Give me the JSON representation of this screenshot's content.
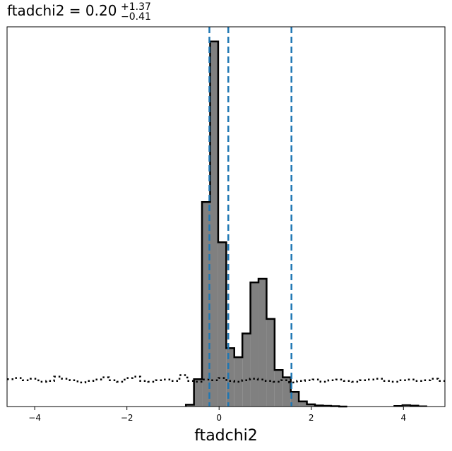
{
  "chart_data": {
    "type": "histogram",
    "title": {
      "main": "ftadchi2 = 0.20",
      "sup": "+1.37",
      "sub": "−0.41"
    },
    "xlabel": "ftadchi2",
    "ylabel": "",
    "xlim": [
      -4.6,
      4.9
    ],
    "ylim": [
      0,
      1.04
    ],
    "x_ticks": [
      -4,
      -2,
      0,
      2,
      4
    ],
    "x_tick_labels": [
      "−4",
      "−2",
      "0",
      "2",
      "4"
    ],
    "y_ticks_visible": false,
    "grid": false,
    "posterior_histogram": {
      "bin_width": 0.175,
      "bins_start": [
        -0.72,
        -0.545,
        -0.37,
        -0.195,
        -0.02,
        0.155,
        0.33,
        0.505,
        0.68,
        0.855,
        1.03,
        1.205,
        1.38,
        1.555,
        1.73,
        1.905,
        2.08,
        2.255,
        2.43,
        2.605
      ],
      "values": [
        0.005,
        0.075,
        0.56,
        1.0,
        0.45,
        0.16,
        0.135,
        0.2,
        0.34,
        0.35,
        0.24,
        0.1,
        0.08,
        0.04,
        0.014,
        0.006,
        0.003,
        0.002,
        0.001,
        0.0
      ],
      "fill": "#808080",
      "edge": "#000000"
    },
    "minor_histogram": {
      "bins_start": [
        3.8,
        3.975,
        4.15,
        4.325
      ],
      "values": [
        0.002,
        0.004,
        0.003,
        0.001
      ]
    },
    "prior_histogram": {
      "style": "dotted",
      "color": "#000000",
      "level": 0.07,
      "x": [
        -4.6,
        -4.43,
        -4.26,
        -4.09,
        -3.92,
        -3.75,
        -3.58,
        -3.41,
        -3.24,
        -3.07,
        -2.9,
        -2.73,
        -2.56,
        -2.39,
        -2.22,
        -2.05,
        -1.88,
        -1.71,
        -1.54,
        -1.37,
        -1.2,
        -1.03,
        -0.86,
        -0.69,
        -0.52,
        -0.35,
        -0.18,
        -0.01,
        0.16,
        0.33,
        0.5,
        0.67,
        0.84,
        1.01,
        1.18,
        1.35,
        1.52,
        1.69,
        1.86,
        2.03,
        2.2,
        2.37,
        2.54,
        2.71,
        2.88,
        3.05,
        3.22,
        3.39,
        3.56,
        3.73,
        3.9,
        4.07,
        4.24,
        4.41,
        4.58,
        4.75
      ],
      "values": [
        0.075,
        0.078,
        0.072,
        0.076,
        0.068,
        0.07,
        0.082,
        0.076,
        0.072,
        0.066,
        0.07,
        0.074,
        0.08,
        0.072,
        0.068,
        0.078,
        0.082,
        0.07,
        0.068,
        0.072,
        0.074,
        0.07,
        0.086,
        0.07,
        0.068,
        0.074,
        0.072,
        0.078,
        0.07,
        0.068,
        0.072,
        0.076,
        0.074,
        0.07,
        0.068,
        0.072,
        0.066,
        0.07,
        0.072,
        0.074,
        0.068,
        0.072,
        0.074,
        0.07,
        0.068,
        0.072,
        0.074,
        0.076,
        0.07,
        0.068,
        0.072,
        0.074,
        0.07,
        0.072,
        0.076,
        0.07
      ]
    },
    "quantile_lines": {
      "x": [
        -0.21,
        0.2,
        1.57
      ],
      "color": "#1f77b4",
      "style": "dashed"
    }
  }
}
